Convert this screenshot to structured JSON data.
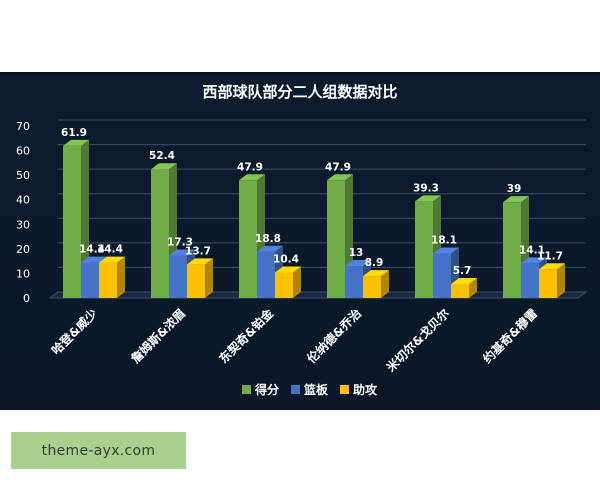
{
  "chart_data": {
    "type": "bar",
    "title": "西部球队部分二人组数据对比",
    "categories": [
      "哈登&威少",
      "詹姆斯&浓眉",
      "东契奇&铂金",
      "伦纳德&乔治",
      "米切尔&戈贝尔",
      "约基奇&穆雷"
    ],
    "series": [
      {
        "name": "得分",
        "values": [
          61.9,
          52.4,
          47.9,
          47.9,
          39.3,
          39
        ],
        "color": "#70ad47"
      },
      {
        "name": "篮板",
        "values": [
          14.4,
          17.3,
          18.8,
          13,
          18.1,
          14.1
        ],
        "color": "#4472c4"
      },
      {
        "name": "助攻",
        "values": [
          14.4,
          13.7,
          10.4,
          8.9,
          5.7,
          11.7
        ],
        "color": "#ffc000"
      }
    ],
    "data_labels": [
      [
        "61.9",
        "52.4",
        "47.9",
        "47.9",
        "39.3",
        "39"
      ],
      [
        "14.4",
        "17.3",
        "18.8",
        "13",
        "18.1",
        "14.1"
      ],
      [
        "14.4",
        "13.7",
        "10.4",
        "8.9",
        "5.7",
        "11.7"
      ]
    ],
    "yticks": [
      "0",
      "10",
      "20",
      "30",
      "40",
      "50",
      "60",
      "70"
    ],
    "ylim": [
      0,
      70
    ],
    "grid": true,
    "legend": "bottom",
    "background": "#0c1b2e"
  },
  "watermark": "theme-ayx.com"
}
